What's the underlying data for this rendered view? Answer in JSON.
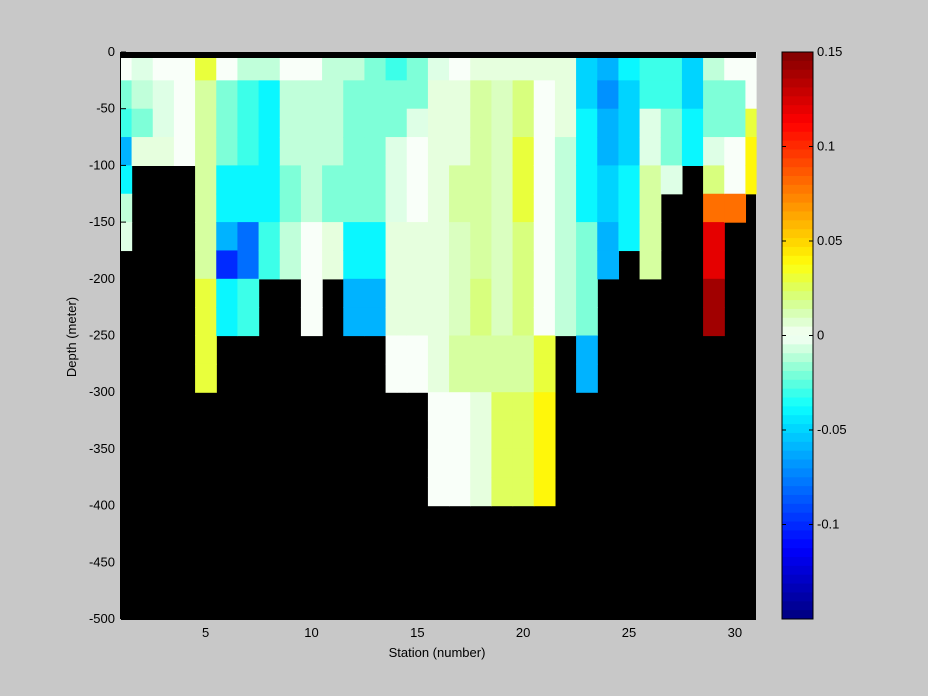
{
  "chart_data": {
    "type": "heatmap",
    "title": "",
    "xlabel": "Station (number)",
    "ylabel": "Depth (meter)",
    "xlim": [
      1,
      31
    ],
    "ylim": [
      -500,
      0
    ],
    "x_ticks": [
      5,
      10,
      15,
      20,
      25,
      30
    ],
    "y_ticks": [
      0,
      -50,
      -100,
      -150,
      -200,
      -250,
      -300,
      -350,
      -400,
      -450,
      -500
    ],
    "depth_bins": [
      0,
      -25,
      -50,
      -75,
      -100,
      -125,
      -150,
      -175,
      -200,
      -225,
      -250,
      -275,
      -300,
      -325,
      -350,
      -375,
      -400
    ],
    "stations": [
      1,
      2,
      3,
      4,
      5,
      6,
      7,
      8,
      9,
      10,
      11,
      12,
      13,
      14,
      15,
      16,
      17,
      18,
      19,
      20,
      21,
      22,
      23,
      24,
      25,
      26,
      27,
      28,
      29,
      30,
      31
    ],
    "colorbar": {
      "range": [
        -0.15,
        0.15
      ],
      "ticks": [
        0.15,
        0.1,
        0.05,
        0,
        -0.05,
        -0.1
      ],
      "tick_labels": [
        "0.15",
        "0.1",
        "0.05",
        "0",
        "-0.05",
        "-0.1"
      ],
      "colormap": "jet-white-centered",
      "no_data_color": "#000000"
    },
    "values": [
      [
        0.0,
        -0.02,
        -0.03,
        -0.06,
        -0.04,
        -0.01,
        -0.005,
        null,
        null,
        null,
        null,
        null,
        null,
        null,
        null,
        null,
        null
      ],
      [
        -0.005,
        -0.01,
        -0.02,
        0.005,
        null,
        null,
        null,
        null,
        null,
        null,
        null,
        null,
        null,
        null,
        null,
        null,
        null
      ],
      [
        0.0,
        -0.005,
        -0.005,
        0.005,
        null,
        null,
        null,
        null,
        null,
        null,
        null,
        null,
        null,
        null,
        null,
        null,
        null
      ],
      [
        0.0,
        0.0,
        0.0,
        0.0,
        null,
        null,
        null,
        null,
        null,
        null,
        null,
        null,
        null,
        null,
        null,
        null,
        null
      ],
      [
        0.03,
        0.015,
        0.015,
        0.015,
        0.015,
        0.015,
        0.015,
        0.015,
        0.03,
        0.03,
        0.03,
        0.03,
        null,
        null,
        null,
        null,
        null
      ],
      [
        0.0,
        -0.02,
        -0.02,
        -0.02,
        -0.04,
        -0.04,
        -0.06,
        -0.1,
        -0.04,
        -0.04,
        null,
        null,
        null,
        null,
        null,
        null,
        null
      ],
      [
        -0.01,
        -0.03,
        -0.03,
        -0.03,
        -0.04,
        -0.04,
        -0.08,
        -0.08,
        -0.03,
        -0.03,
        null,
        null,
        null,
        null,
        null,
        null,
        null
      ],
      [
        -0.01,
        -0.04,
        -0.04,
        -0.04,
        -0.04,
        -0.04,
        -0.03,
        -0.03,
        null,
        null,
        null,
        null,
        null,
        null,
        null,
        null,
        null
      ],
      [
        0.0,
        -0.01,
        -0.01,
        -0.01,
        -0.02,
        -0.02,
        -0.01,
        -0.01,
        null,
        null,
        null,
        null,
        null,
        null,
        null,
        null,
        null
      ],
      [
        0.0,
        -0.01,
        -0.01,
        -0.01,
        -0.01,
        -0.01,
        0.0,
        0.0,
        0.0,
        0.0,
        null,
        null,
        null,
        null,
        null,
        null,
        null
      ],
      [
        -0.01,
        -0.01,
        -0.01,
        -0.01,
        -0.02,
        -0.02,
        0.005,
        0.005,
        null,
        null,
        null,
        null,
        null,
        null,
        null,
        null,
        null
      ],
      [
        -0.01,
        -0.02,
        -0.02,
        -0.02,
        -0.02,
        -0.02,
        -0.04,
        -0.04,
        -0.06,
        -0.06,
        null,
        null,
        null,
        null,
        null,
        null,
        null
      ],
      [
        -0.02,
        -0.02,
        -0.02,
        -0.02,
        -0.02,
        -0.02,
        -0.04,
        -0.04,
        -0.06,
        -0.06,
        null,
        null,
        null,
        null,
        null,
        null,
        null
      ],
      [
        -0.03,
        -0.02,
        -0.02,
        -0.005,
        -0.005,
        -0.005,
        0.005,
        0.005,
        0.005,
        0.005,
        0.0,
        0.0,
        null,
        null,
        null,
        null,
        null
      ],
      [
        -0.02,
        -0.02,
        -0.005,
        0.0,
        0.0,
        0.0,
        0.005,
        0.005,
        0.005,
        0.005,
        0.0,
        0.0,
        null,
        null,
        null,
        null,
        null
      ],
      [
        -0.005,
        0.005,
        0.005,
        0.005,
        0.005,
        0.005,
        0.005,
        0.005,
        0.005,
        0.005,
        0.005,
        0.005,
        0.0,
        0.0,
        0.0,
        0.0,
        null
      ],
      [
        0.0,
        0.005,
        0.005,
        0.005,
        0.015,
        0.015,
        0.01,
        0.01,
        0.01,
        0.01,
        0.015,
        0.015,
        0.0,
        0.0,
        0.0,
        0.0,
        null
      ],
      [
        0.005,
        0.015,
        0.015,
        0.015,
        0.015,
        0.015,
        0.015,
        0.015,
        0.02,
        0.02,
        0.015,
        0.015,
        0.005,
        0.005,
        0.005,
        0.005,
        null
      ],
      [
        0.005,
        0.01,
        0.01,
        0.01,
        0.01,
        0.01,
        0.01,
        0.01,
        0.01,
        0.01,
        0.015,
        0.015,
        0.025,
        0.025,
        0.025,
        0.025,
        null
      ],
      [
        0.005,
        0.02,
        0.02,
        0.03,
        0.03,
        0.03,
        0.02,
        0.02,
        0.02,
        0.02,
        0.015,
        0.015,
        0.025,
        0.025,
        0.025,
        0.025,
        null
      ],
      [
        0.005,
        0.0,
        0.0,
        0.0,
        0.0,
        0.0,
        0.0,
        0.0,
        0.0,
        0.0,
        0.03,
        0.03,
        0.04,
        0.04,
        0.04,
        0.04,
        null
      ],
      [
        0.005,
        0.005,
        0.005,
        -0.01,
        -0.01,
        -0.01,
        -0.01,
        -0.01,
        -0.01,
        -0.01,
        null,
        null,
        null,
        null,
        null,
        null,
        null
      ],
      [
        -0.05,
        -0.05,
        -0.04,
        -0.04,
        -0.04,
        -0.04,
        -0.02,
        -0.02,
        -0.02,
        -0.02,
        -0.06,
        -0.06,
        null,
        null,
        null,
        null,
        null
      ],
      [
        -0.06,
        -0.07,
        -0.06,
        -0.06,
        -0.05,
        -0.05,
        -0.06,
        -0.06,
        null,
        null,
        null,
        null,
        null,
        null,
        null,
        null,
        null
      ],
      [
        -0.04,
        -0.05,
        -0.05,
        -0.05,
        -0.04,
        -0.04,
        -0.04,
        null,
        null,
        null,
        null,
        null,
        null,
        null,
        null,
        null,
        null
      ],
      [
        -0.03,
        -0.03,
        -0.005,
        -0.005,
        0.015,
        0.015,
        0.015,
        0.015,
        null,
        null,
        null,
        null,
        null,
        null,
        null,
        null,
        null
      ],
      [
        -0.03,
        -0.03,
        -0.02,
        -0.02,
        -0.005,
        null,
        null,
        null,
        null,
        null,
        null,
        null,
        null,
        null,
        null,
        null,
        null
      ],
      [
        -0.05,
        -0.05,
        -0.04,
        -0.04,
        null,
        null,
        null,
        null,
        null,
        null,
        null,
        null,
        null,
        null,
        null,
        null,
        null
      ],
      [
        -0.01,
        -0.02,
        -0.02,
        -0.005,
        0.02,
        0.08,
        0.12,
        0.12,
        0.14,
        0.14,
        null,
        null,
        null,
        null,
        null,
        null,
        null
      ],
      [
        0.0,
        -0.02,
        -0.02,
        0.0,
        0.0,
        0.08,
        null,
        null,
        null,
        null,
        null,
        null,
        null,
        null,
        null,
        null,
        null
      ],
      [
        0.0,
        0.0,
        0.03,
        0.04,
        0.04,
        null,
        null,
        null,
        null,
        null,
        null,
        null,
        null,
        null,
        null,
        null,
        null
      ]
    ]
  }
}
